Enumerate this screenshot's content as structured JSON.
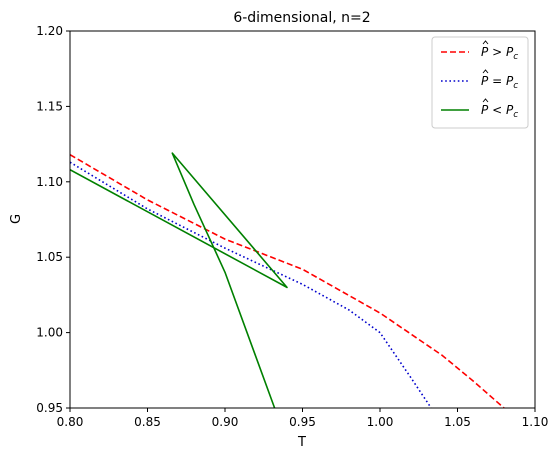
{
  "chart_data": {
    "type": "line",
    "title": "6-dimensional, n=2",
    "xlabel": "T",
    "ylabel": "G",
    "xlim": [
      0.8,
      1.1
    ],
    "ylim": [
      0.95,
      1.2
    ],
    "xticks": [
      "0.80",
      "0.85",
      "0.90",
      "0.95",
      "1.00",
      "1.05",
      "1.10"
    ],
    "yticks": [
      "0.95",
      "1.00",
      "1.05",
      "1.10",
      "1.15",
      "1.20"
    ],
    "grid": false,
    "legend_position": "top-right",
    "series": [
      {
        "name": "P̂ > P_c",
        "legend": {
          "hat": "P",
          "op": " > ",
          "base": "P",
          "sub": "c"
        },
        "color": "#ff0000",
        "style": "dashed",
        "x": [
          0.8,
          0.85,
          0.9,
          0.95,
          1.0,
          1.04,
          1.06,
          1.08
        ],
        "y": [
          1.118,
          1.088,
          1.062,
          1.042,
          1.013,
          0.985,
          0.968,
          0.95
        ]
      },
      {
        "name": "P̂ = P_c",
        "legend": {
          "hat": "P",
          "op": " = ",
          "base": "P",
          "sub": "c"
        },
        "color": "#0000cc",
        "style": "dotted",
        "x": [
          0.8,
          0.85,
          0.9,
          0.95,
          0.98,
          1.0,
          1.01,
          1.02,
          1.033
        ],
        "y": [
          1.113,
          1.082,
          1.056,
          1.032,
          1.015,
          1.0,
          0.985,
          0.97,
          0.95
        ]
      },
      {
        "name": "P̂ < P_c",
        "legend": {
          "hat": "P",
          "op": " < ",
          "base": "P",
          "sub": "c"
        },
        "color": "#008000",
        "style": "solid",
        "x": [
          0.8,
          0.94,
          0.866,
          0.88,
          0.9,
          0.932
        ],
        "y": [
          1.108,
          1.03,
          1.119,
          1.085,
          1.04,
          0.95
        ]
      }
    ]
  }
}
